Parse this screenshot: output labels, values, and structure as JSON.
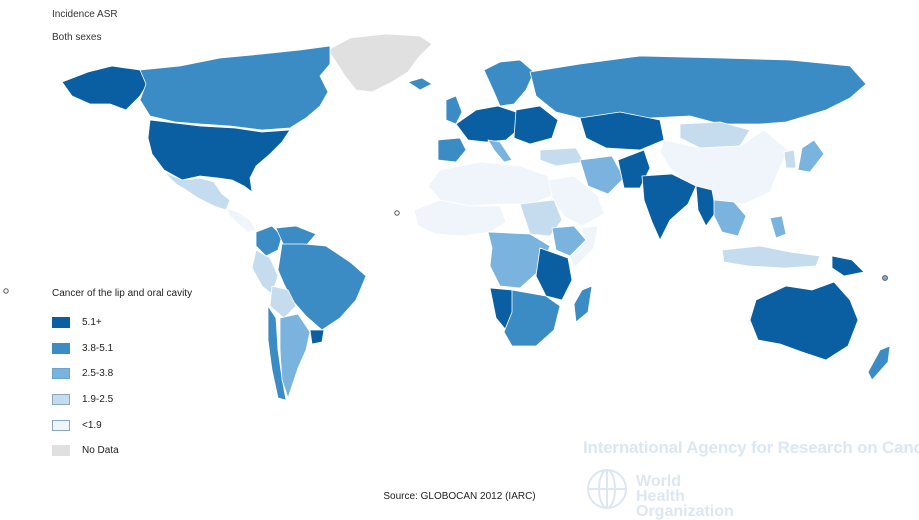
{
  "header": {
    "measure": "Incidence ASR",
    "sex": "Both sexes"
  },
  "legend": {
    "title": "Cancer of the lip and oral cavity",
    "items": [
      {
        "label": "5.1+",
        "color": "#0a5fa3",
        "border": "#0a5fa3"
      },
      {
        "label": "3.8-5.1",
        "color": "#3b8cc4",
        "border": "#3b8cc4"
      },
      {
        "label": "2.5-3.8",
        "color": "#7ab3de",
        "border": "#6aa3ce"
      },
      {
        "label": "1.9-2.5",
        "color": "#c5dcee",
        "border": "#8aa6c0"
      },
      {
        "label": "<1.9",
        "color": "#eff5fb",
        "border": "#8aa6c0"
      },
      {
        "label": "No Data",
        "color": "#e0e0e0",
        "border": "#e0e0e0"
      }
    ]
  },
  "source": "Source: GLOBOCAN 2012 (IARC)",
  "watermark": {
    "agency": "International Agency for Research on Cancer",
    "who_line1": "World Health",
    "who_line2": "Organization",
    "color": "#dce7f1"
  },
  "regions": [
    {
      "name": "Greenland",
      "class": "No Data"
    },
    {
      "name": "Canada",
      "class": "3.8-5.1"
    },
    {
      "name": "Alaska",
      "class": "5.1+"
    },
    {
      "name": "United States",
      "class": "5.1+"
    },
    {
      "name": "Mexico",
      "class": "1.9-2.5"
    },
    {
      "name": "Central America",
      "class": "<1.9"
    },
    {
      "name": "Colombia",
      "class": "3.8-5.1"
    },
    {
      "name": "Venezuela",
      "class": "3.8-5.1"
    },
    {
      "name": "Peru",
      "class": "1.9-2.5"
    },
    {
      "name": "Brazil",
      "class": "3.8-5.1"
    },
    {
      "name": "Bolivia",
      "class": "1.9-2.5"
    },
    {
      "name": "Argentina",
      "class": "2.5-3.8"
    },
    {
      "name": "Chile",
      "class": "3.8-5.1"
    },
    {
      "name": "Uruguay",
      "class": "5.1+"
    },
    {
      "name": "Iceland",
      "class": "3.8-5.1"
    },
    {
      "name": "Scandinavia",
      "class": "3.8-5.1"
    },
    {
      "name": "United Kingdom",
      "class": "3.8-5.1"
    },
    {
      "name": "Western Europe",
      "class": "5.1+"
    },
    {
      "name": "Iberia",
      "class": "3.8-5.1"
    },
    {
      "name": "Italy",
      "class": "2.5-3.8"
    },
    {
      "name": "Eastern Europe",
      "class": "5.1+"
    },
    {
      "name": "Russia",
      "class": "3.8-5.1"
    },
    {
      "name": "Kazakhstan",
      "class": "5.1+"
    },
    {
      "name": "Mongolia",
      "class": "1.9-2.5"
    },
    {
      "name": "China",
      "class": "<1.9"
    },
    {
      "name": "Japan",
      "class": "2.5-3.8"
    },
    {
      "name": "Korea",
      "class": "1.9-2.5"
    },
    {
      "name": "Turkey",
      "class": "1.9-2.5"
    },
    {
      "name": "Iran",
      "class": "2.5-3.8"
    },
    {
      "name": "Arabian Peninsula",
      "class": "<1.9"
    },
    {
      "name": "Pakistan",
      "class": "5.1+"
    },
    {
      "name": "India",
      "class": "5.1+"
    },
    {
      "name": "Myanmar",
      "class": "5.1+"
    },
    {
      "name": "Southeast Asia",
      "class": "2.5-3.8"
    },
    {
      "name": "Indonesia",
      "class": "1.9-2.5"
    },
    {
      "name": "Philippines",
      "class": "2.5-3.8"
    },
    {
      "name": "Papua New Guinea",
      "class": "5.1+"
    },
    {
      "name": "Australia",
      "class": "5.1+"
    },
    {
      "name": "New Zealand",
      "class": "3.8-5.1"
    },
    {
      "name": "North Africa",
      "class": "<1.9"
    },
    {
      "name": "West Africa",
      "class": "<1.9"
    },
    {
      "name": "Central Africa",
      "class": "2.5-3.8"
    },
    {
      "name": "Sudan",
      "class": "1.9-2.5"
    },
    {
      "name": "Ethiopia",
      "class": "2.5-3.8"
    },
    {
      "name": "Somalia",
      "class": "<1.9"
    },
    {
      "name": "East Africa",
      "class": "5.1+"
    },
    {
      "name": "Southern Africa",
      "class": "3.8-5.1"
    },
    {
      "name": "Namibia",
      "class": "5.1+"
    },
    {
      "name": "Madagascar",
      "class": "3.8-5.1"
    }
  ]
}
